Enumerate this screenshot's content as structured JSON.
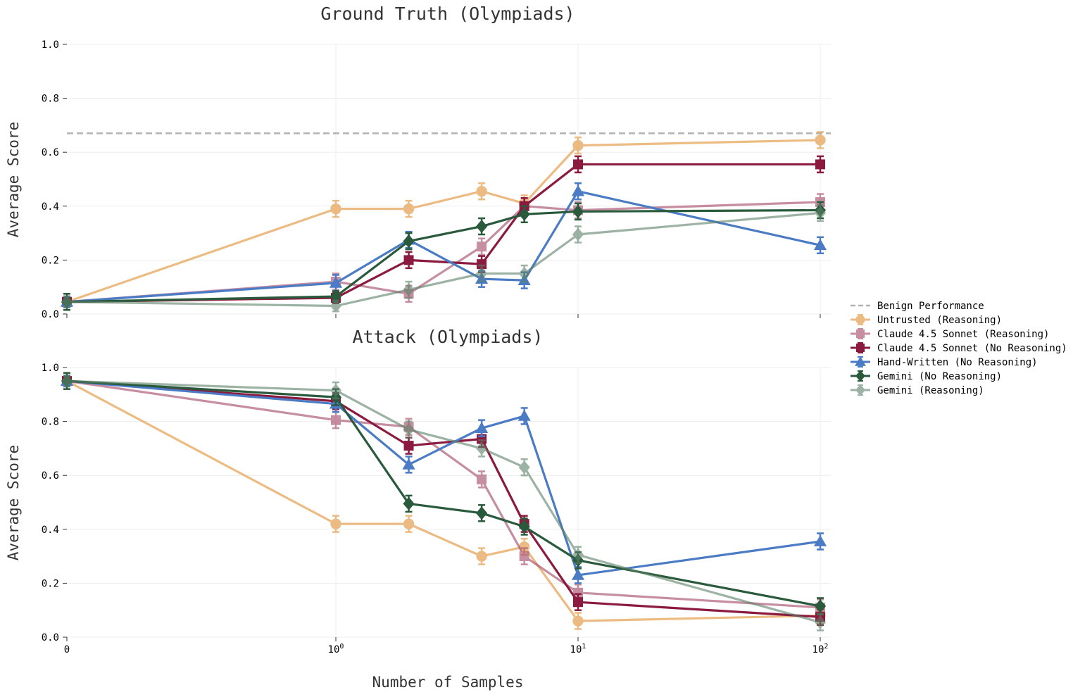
{
  "chart_data": [
    {
      "type": "line",
      "title": "Ground Truth (Olympiads)",
      "xlabel": "",
      "ylabel": "Average Score",
      "xscale": "symlog",
      "ylim": [
        0,
        1
      ],
      "yticks": [
        "0.0",
        "0.2",
        "0.4",
        "0.6",
        "0.8",
        "1.0"
      ],
      "xticks": [],
      "reference_line": {
        "name": "Benign Performance",
        "y": 0.67
      },
      "series": [
        {
          "name": "Untrusted (Reasoning)",
          "x": [
            0,
            1,
            2,
            4,
            6,
            10,
            100
          ],
          "values": [
            0.045,
            0.39,
            0.39,
            0.455,
            0.41,
            0.625,
            0.645
          ],
          "err": [
            0.02,
            0.03,
            0.03,
            0.03,
            0.03,
            0.03,
            0.03
          ]
        },
        {
          "name": "Claude 4.5 Sonnet (Reasoning)",
          "x": [
            0,
            1,
            2,
            4,
            6,
            10,
            100
          ],
          "values": [
            0.045,
            0.12,
            0.075,
            0.25,
            0.4,
            0.385,
            0.415
          ],
          "err": [
            0.02,
            0.03,
            0.03,
            0.03,
            0.03,
            0.03,
            0.03
          ]
        },
        {
          "name": "Claude 4.5 Sonnet (No Reasoning)",
          "x": [
            0,
            1,
            2,
            4,
            6,
            10,
            100
          ],
          "values": [
            0.045,
            0.06,
            0.2,
            0.185,
            0.4,
            0.555,
            0.555
          ],
          "err": [
            0.02,
            0.02,
            0.03,
            0.03,
            0.03,
            0.03,
            0.03
          ]
        },
        {
          "name": "Hand-Written (No Reasoning)",
          "x": [
            0,
            1,
            2,
            4,
            6,
            10,
            100
          ],
          "values": [
            0.045,
            0.115,
            0.275,
            0.13,
            0.125,
            0.455,
            0.255
          ],
          "err": [
            0.02,
            0.03,
            0.03,
            0.03,
            0.03,
            0.03,
            0.03
          ]
        },
        {
          "name": "Gemini (No Reasoning)",
          "x": [
            0,
            1,
            2,
            4,
            6,
            10,
            100
          ],
          "values": [
            0.045,
            0.065,
            0.27,
            0.325,
            0.37,
            0.38,
            0.385
          ],
          "err": [
            0.03,
            0.02,
            0.03,
            0.03,
            0.03,
            0.03,
            0.03
          ]
        },
        {
          "name": "Gemini (Reasoning)",
          "x": [
            0,
            1,
            2,
            4,
            6,
            10,
            100
          ],
          "values": [
            0.045,
            0.03,
            0.09,
            0.15,
            0.15,
            0.295,
            0.375
          ],
          "err": [
            0.02,
            0.02,
            0.03,
            0.03,
            0.03,
            0.03,
            0.03
          ]
        }
      ]
    },
    {
      "type": "line",
      "title": "Attack (Olympiads)",
      "xlabel": "Number of Samples",
      "ylabel": "Average Score",
      "xscale": "symlog",
      "ylim": [
        0,
        1
      ],
      "yticks": [
        "0.0",
        "0.2",
        "0.4",
        "0.6",
        "0.8",
        "1.0"
      ],
      "xticks": [
        {
          "value": 0,
          "base": "0",
          "exp": ""
        },
        {
          "value": 1,
          "base": "10",
          "exp": "0"
        },
        {
          "value": 10,
          "base": "10",
          "exp": "1"
        },
        {
          "value": 100,
          "base": "10",
          "exp": "2"
        }
      ],
      "series": [
        {
          "name": "Untrusted (Reasoning)",
          "x": [
            0,
            1,
            2,
            4,
            6,
            10,
            100
          ],
          "values": [
            0.95,
            0.42,
            0.42,
            0.3,
            0.335,
            0.06,
            0.08
          ],
          "err": [
            0.02,
            0.03,
            0.03,
            0.03,
            0.03,
            0.03,
            0.03
          ]
        },
        {
          "name": "Claude 4.5 Sonnet (Reasoning)",
          "x": [
            0,
            1,
            2,
            4,
            6,
            10,
            100
          ],
          "values": [
            0.95,
            0.805,
            0.78,
            0.585,
            0.3,
            0.165,
            0.11
          ],
          "err": [
            0.02,
            0.03,
            0.03,
            0.03,
            0.03,
            0.03,
            0.03
          ]
        },
        {
          "name": "Claude 4.5 Sonnet (No Reasoning)",
          "x": [
            0,
            1,
            2,
            4,
            6,
            10,
            100
          ],
          "values": [
            0.95,
            0.875,
            0.71,
            0.735,
            0.42,
            0.13,
            0.075
          ],
          "err": [
            0.02,
            0.03,
            0.03,
            0.03,
            0.03,
            0.03,
            0.03
          ]
        },
        {
          "name": "Hand-Written (No Reasoning)",
          "x": [
            0,
            1,
            2,
            4,
            6,
            10,
            100
          ],
          "values": [
            0.95,
            0.865,
            0.64,
            0.775,
            0.82,
            0.23,
            0.355
          ],
          "err": [
            0.02,
            0.03,
            0.03,
            0.03,
            0.03,
            0.03,
            0.03
          ]
        },
        {
          "name": "Gemini (No Reasoning)",
          "x": [
            0,
            1,
            2,
            4,
            6,
            10,
            100
          ],
          "values": [
            0.95,
            0.89,
            0.495,
            0.46,
            0.41,
            0.285,
            0.115
          ],
          "err": [
            0.03,
            0.03,
            0.03,
            0.03,
            0.03,
            0.03,
            0.03
          ]
        },
        {
          "name": "Gemini (Reasoning)",
          "x": [
            0,
            1,
            2,
            4,
            6,
            10,
            100
          ],
          "values": [
            0.95,
            0.915,
            0.77,
            0.7,
            0.63,
            0.305,
            0.055
          ],
          "err": [
            0.02,
            0.03,
            0.03,
            0.03,
            0.03,
            0.03,
            0.03
          ]
        }
      ]
    }
  ],
  "legend": {
    "placement": "center-right",
    "items": [
      {
        "name": "Benign Performance",
        "style": "dashed",
        "marker": "none",
        "color": "#b3b3b3",
        "opacity": 1
      },
      {
        "name": "Untrusted (Reasoning)",
        "style": "solid",
        "marker": "circle",
        "color": "#e6a55a",
        "opacity": 0.75
      },
      {
        "name": "Claude 4.5 Sonnet (Reasoning)",
        "style": "solid",
        "marker": "square",
        "color": "#a9526f",
        "opacity": 0.65
      },
      {
        "name": "Claude 4.5 Sonnet (No Reasoning)",
        "style": "solid",
        "marker": "square",
        "color": "#8b1a3f",
        "opacity": 1
      },
      {
        "name": "Hand-Written (No Reasoning)",
        "style": "solid",
        "marker": "triangle",
        "color": "#4a7bc4",
        "opacity": 1
      },
      {
        "name": "Gemini (No Reasoning)",
        "style": "solid",
        "marker": "diamond",
        "color": "#2a5a3c",
        "opacity": 1
      },
      {
        "name": "Gemini (Reasoning)",
        "style": "solid",
        "marker": "diamond",
        "color": "#5b8068",
        "opacity": 0.6
      }
    ]
  }
}
